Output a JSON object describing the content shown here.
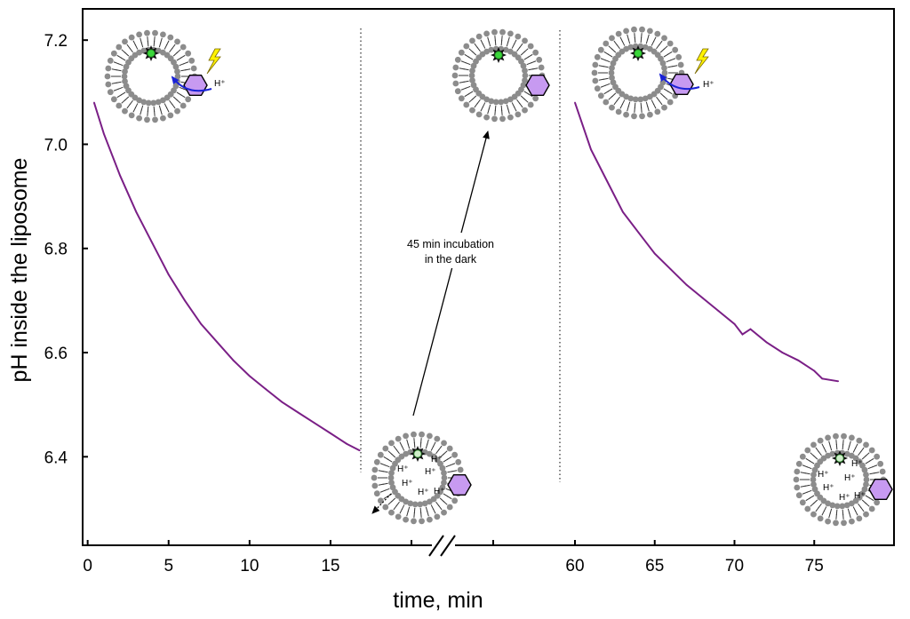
{
  "chart_data": {
    "type": "line",
    "xlabel": "time, min",
    "ylabel": "pH inside the liposome",
    "ylim": [
      6.23,
      7.26
    ],
    "y_ticks": [
      6.4,
      6.6,
      6.8,
      7.0,
      7.2
    ],
    "y_tick_labels": [
      "6.4",
      "6.6",
      "6.8",
      "7.0",
      "7.2"
    ],
    "segments": [
      {
        "name": "illumination-1",
        "xlim": [
          -0.2,
          20
        ],
        "x_ticks": [
          0,
          5,
          10,
          15
        ],
        "x_tick_labels": [
          "0",
          "5",
          "10",
          "15"
        ],
        "x": [
          0.4,
          1,
          2,
          3,
          4,
          5,
          6,
          7,
          8,
          9,
          10,
          11,
          12,
          13,
          14,
          15,
          16,
          16.8
        ],
        "y": [
          7.08,
          7.02,
          6.94,
          6.87,
          6.81,
          6.75,
          6.7,
          6.655,
          6.62,
          6.585,
          6.555,
          6.53,
          6.505,
          6.485,
          6.465,
          6.445,
          6.425,
          6.412
        ]
      },
      {
        "name": "illumination-2",
        "xlim": [
          60,
          80
        ],
        "x_ticks": [
          60,
          65,
          70,
          75
        ],
        "x_tick_labels": [
          "60",
          "65",
          "70",
          "75"
        ],
        "x": [
          60,
          61,
          62,
          63,
          64,
          65,
          66,
          67,
          68,
          69,
          70,
          70.5,
          71,
          72,
          73,
          74,
          75,
          75.5,
          76.5
        ],
        "y": [
          7.08,
          6.99,
          6.93,
          6.87,
          6.83,
          6.79,
          6.76,
          6.73,
          6.705,
          6.68,
          6.655,
          6.635,
          6.645,
          6.62,
          6.6,
          6.585,
          6.565,
          6.55,
          6.545
        ]
      }
    ],
    "series_color": "#7a1f86",
    "annotations": {
      "incubation_text_1": "45 min incubation",
      "incubation_text_2": "in the dark",
      "h_plus": "H⁺"
    }
  }
}
